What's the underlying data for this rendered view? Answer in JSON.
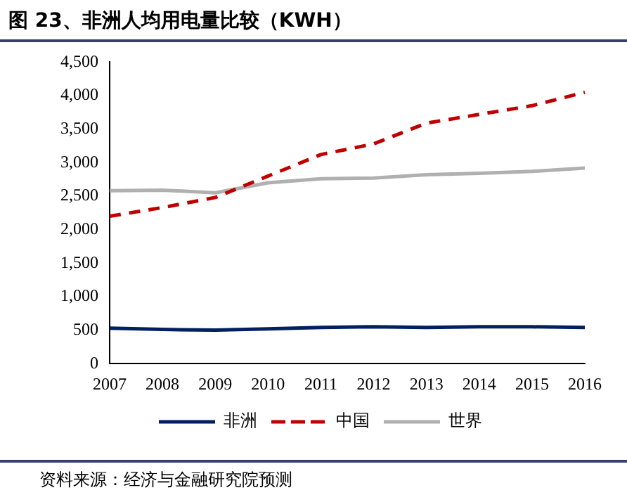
{
  "chart_data": {
    "type": "line",
    "title": "图 23、非洲人均用电量比较（KWH）",
    "categories": [
      "2007",
      "2008",
      "2009",
      "2010",
      "2011",
      "2012",
      "2013",
      "2014",
      "2015",
      "2016"
    ],
    "series": [
      {
        "name": "非洲",
        "color": "#002060",
        "values": [
          530,
          510,
          500,
          520,
          540,
          550,
          540,
          550,
          550,
          540
        ],
        "line_style": "solid"
      },
      {
        "name": "中国",
        "color": "#c00000",
        "values": [
          2200,
          2330,
          2480,
          2800,
          3120,
          3280,
          3590,
          3720,
          3850,
          4050
        ],
        "line_style": "dashed"
      },
      {
        "name": "世界",
        "color": "#b0b0b0",
        "values": [
          2580,
          2590,
          2550,
          2700,
          2760,
          2770,
          2820,
          2840,
          2870,
          2920
        ],
        "line_style": "solid"
      }
    ],
    "ylim": [
      0,
      4500
    ],
    "yticks": [
      0,
      500,
      {
        "value": 1000,
        "label": "1,000"
      },
      {
        "value": 1500,
        "label": "1,500"
      },
      {
        "value": 2000,
        "label": "2,000"
      },
      {
        "value": 2500,
        "label": "2,500"
      },
      {
        "value": 3000,
        "label": "3,000"
      },
      {
        "value": 3500,
        "label": "3,500"
      },
      {
        "value": 4000,
        "label": "4,000"
      },
      {
        "value": 4500,
        "label": "4,500"
      }
    ],
    "grid": false,
    "legend": "bottom",
    "marker": "none",
    "annotations": [
      "资料来源：经济与金融研究院预测"
    ]
  }
}
